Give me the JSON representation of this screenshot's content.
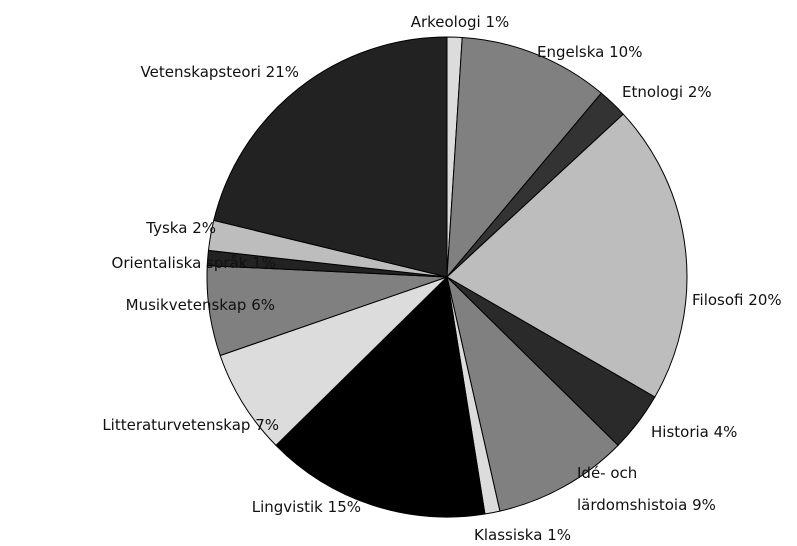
{
  "chart_data": {
    "type": "pie",
    "categories": [
      "Arkeologi",
      "Engelska",
      "Etnologi",
      "Filosofi",
      "Historia",
      "Idé- och lärdomshistoia",
      "Klassiska",
      "Lingvistik",
      "Litteraturvetenskap",
      "Musikvetenskap",
      "Orientaliska språk",
      "Tyska",
      "Vetenskapsteori"
    ],
    "values": [
      1,
      10,
      2,
      20,
      4,
      9,
      1,
      15,
      7,
      6,
      1,
      2,
      21
    ],
    "value_labels": [
      "1%",
      "10%",
      "2%",
      "20%",
      "4%",
      "9%",
      "1%",
      "15%",
      "7%",
      "6%",
      "1%",
      "2%",
      "21%"
    ],
    "colors": [
      "#dcdcdc",
      "#808080",
      "#333333",
      "#bdbdbd",
      "#2a2a2a",
      "#808080",
      "#dcdcdc",
      "#000000",
      "#dcdcdc",
      "#808080",
      "#222222",
      "#bdbdbd",
      "#222222"
    ]
  }
}
